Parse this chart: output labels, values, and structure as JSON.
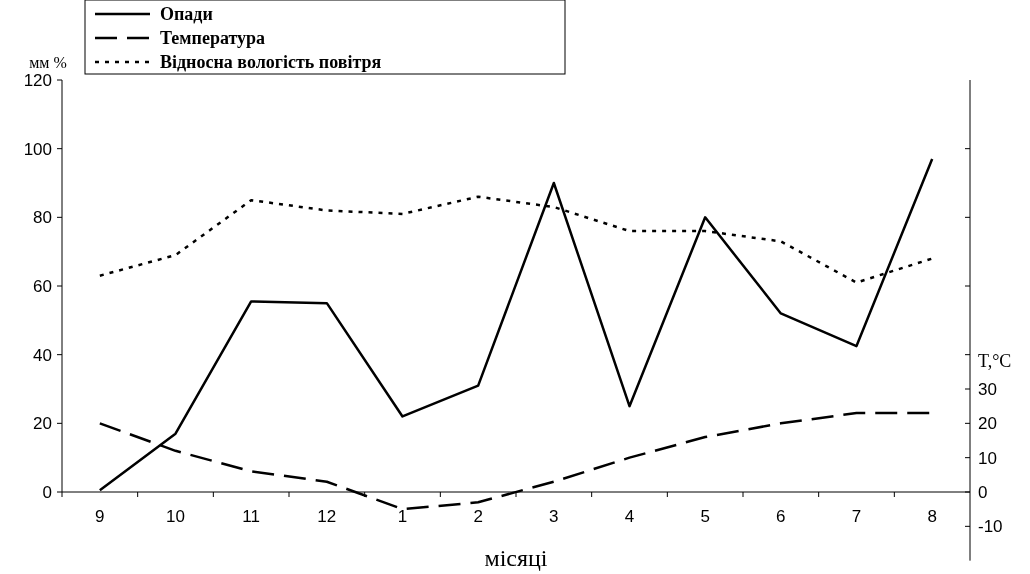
{
  "chart_data": {
    "type": "line",
    "ylabel": "мм %",
    "y2label": "T,°C",
    "xlabel": "місяці",
    "categories": [
      "9",
      "10",
      "11",
      "12",
      "1",
      "2",
      "3",
      "4",
      "5",
      "6",
      "7",
      "8"
    ],
    "ylim": [
      0,
      120
    ],
    "yticks": [
      0,
      20,
      40,
      60,
      80,
      100,
      120
    ],
    "y2lim": [
      -20,
      120
    ],
    "y2ticks": [
      -10,
      0,
      10,
      20,
      30,
      {
        "value": 40,
        "label": null
      },
      {
        "value": 60,
        "label": null
      },
      {
        "value": 80,
        "label": null
      },
      {
        "value": 100,
        "label": null
      }
    ],
    "grid": false,
    "legend": "top left",
    "series": [
      {
        "name": "Опади",
        "color": "#000000",
        "line_style": "solid",
        "values": [
          0.5,
          17,
          55.5,
          55,
          22,
          31,
          90,
          25,
          80,
          52,
          42.5,
          97
        ]
      },
      {
        "name": "Температура",
        "color": "#000000",
        "line_style": "dashed",
        "axis": "y2",
        "values": [
          20,
          12,
          6,
          3,
          -5,
          -3,
          3,
          10,
          16,
          20,
          23,
          23
        ]
      },
      {
        "name": "Відносна вологість повітря",
        "color": "#000000",
        "line_style": "dotted",
        "values": [
          63,
          69,
          85,
          82,
          81,
          86,
          83,
          76,
          76,
          73,
          61,
          68
        ]
      }
    ]
  }
}
